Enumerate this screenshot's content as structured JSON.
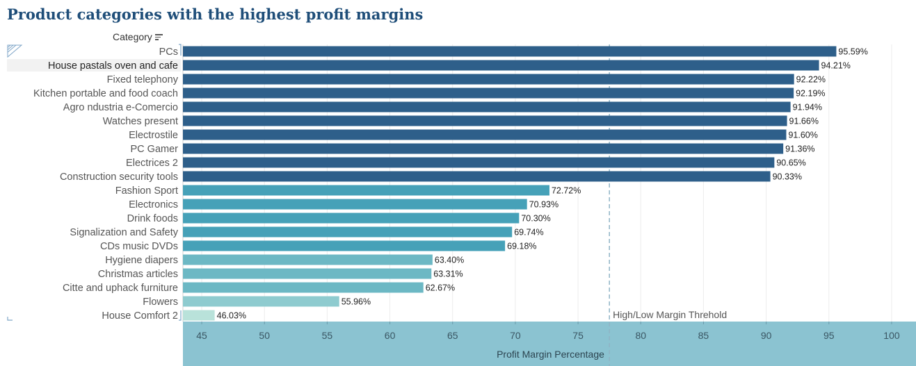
{
  "title": "Product categories with the highest profit margins",
  "header": {
    "category_label": "Category"
  },
  "chart_data": {
    "type": "bar",
    "orientation": "horizontal",
    "title": "Product categories with the highest profit margins",
    "ylabel": "Category",
    "xlabel": "Profit Margin Percentage",
    "xlim": [
      43.5,
      101
    ],
    "xticks": [
      45,
      50,
      55,
      60,
      65,
      70,
      75,
      80,
      85,
      90,
      95,
      100
    ],
    "grid": true,
    "categories": [
      "PCs",
      "House pastals oven and cafe",
      "Fixed telephony",
      "Kitchen portable and food coach",
      "Agro ndustria e-Comercio",
      "Watches present",
      "Electrostile",
      "PC Gamer",
      "Electrices 2",
      "Construction security tools",
      "Fashion Sport",
      "Electronics",
      "Drink foods",
      "Signalization and Safety",
      "CDs music DVDs",
      "Hygiene diapers",
      "Christmas articles",
      "Citte and uphack furniture",
      "Flowers",
      "House Comfort 2"
    ],
    "values": [
      95.59,
      94.21,
      92.22,
      92.19,
      91.94,
      91.66,
      91.6,
      91.36,
      90.65,
      90.33,
      72.72,
      70.93,
      70.3,
      69.74,
      69.18,
      63.4,
      63.31,
      62.67,
      55.96,
      46.03
    ],
    "value_labels": [
      "95.59%",
      "94.21%",
      "92.22%",
      "92.19%",
      "91.94%",
      "91.66%",
      "91.60%",
      "91.36%",
      "90.65%",
      "90.33%",
      "72.72%",
      "70.93%",
      "70.30%",
      "69.74%",
      "69.18%",
      "63.40%",
      "63.31%",
      "62.67%",
      "55.96%",
      "46.03%"
    ],
    "reference_line": {
      "value": 77.5,
      "label": "High/Low Margin Threhold",
      "style": "dashed"
    },
    "colors": {
      "high": "#2e5f8a",
      "mid": "#46a1b8",
      "low": "#6cb8c4",
      "lower": "#8ecbcf",
      "lowest": "#b9e2da",
      "axis_band": "#8bc3d1",
      "reference": "#8fb3c6"
    }
  }
}
